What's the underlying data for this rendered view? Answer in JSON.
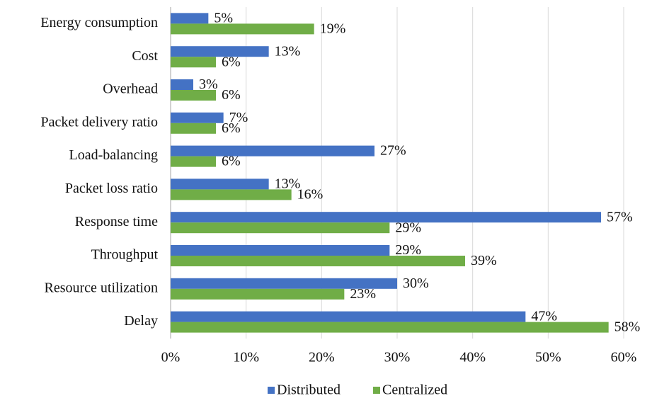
{
  "chart_data": {
    "type": "bar",
    "orientation": "horizontal",
    "categories": [
      "Energy consumption",
      "Cost",
      "Overhead",
      "Packet delivery ratio",
      "Load-balancing",
      "Packet loss ratio",
      "Response time",
      "Throughput",
      "Resource utilization",
      "Delay"
    ],
    "series": [
      {
        "name": "Distributed",
        "color": "#4472c4",
        "values": [
          5,
          13,
          3,
          7,
          27,
          13,
          57,
          29,
          30,
          47
        ],
        "value_labels": [
          "5%",
          "13%",
          "3%",
          "7%",
          "27%",
          "13%",
          "57%",
          "29%",
          "30%",
          "47%"
        ]
      },
      {
        "name": "Centralized",
        "color": "#70ad47",
        "values": [
          19,
          6,
          6,
          6,
          6,
          16,
          29,
          39,
          23,
          58
        ],
        "value_labels": [
          "19%",
          "6%",
          "6%",
          "6%",
          "6%",
          "16%",
          "29%",
          "39%",
          "23%",
          "58%"
        ]
      }
    ],
    "xlim": [
      0,
      60
    ],
    "xticks": [
      {
        "value": 0,
        "label": "0%"
      },
      {
        "value": 10,
        "label": "10%"
      },
      {
        "value": 20,
        "label": "20%"
      },
      {
        "value": 30,
        "label": "30%"
      },
      {
        "value": 40,
        "label": "40%"
      },
      {
        "value": 50,
        "label": "50%"
      },
      {
        "value": 60,
        "label": "60%"
      }
    ],
    "grid": true,
    "legend": "bottom"
  }
}
